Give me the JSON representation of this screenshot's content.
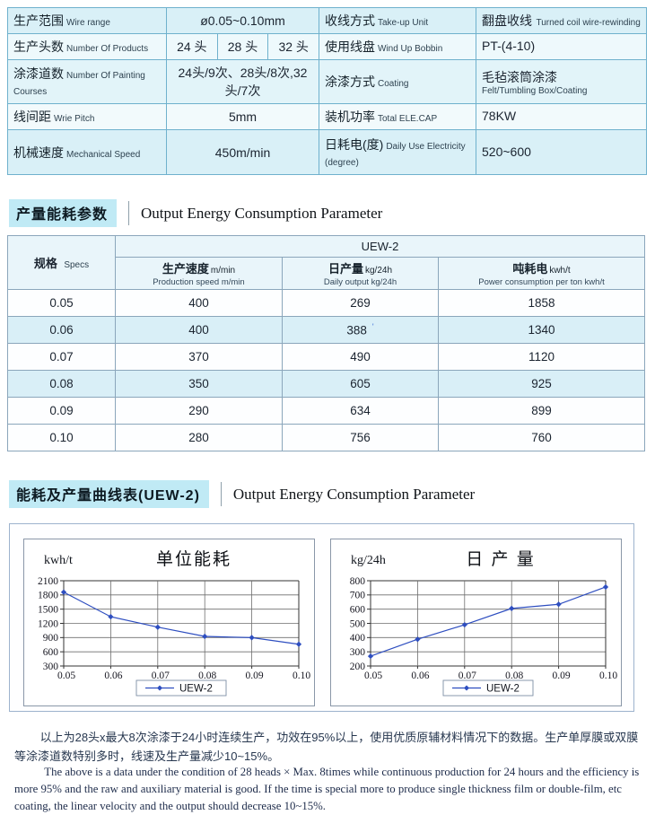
{
  "spec_table": {
    "rows": [
      {
        "l_zh": "生产范围",
        "l_en": "Wire range",
        "mid": {
          "type": "single",
          "text": "ø0.05~0.10mm"
        },
        "r_zh": "收线方式",
        "r_en": "Take-up Unit",
        "rv_main": "翻盘收线",
        "rv_sub": "Turned coil wire-rewinding",
        "rv_inline": true
      },
      {
        "l_zh": "生产头数",
        "l_en": "Number Of Products",
        "mid": {
          "type": "split",
          "cells": [
            "24 头",
            "28 头",
            "32 头"
          ]
        },
        "r_zh": "使用线盘",
        "r_en": "Wind Up Bobbin",
        "rv_main": "PT-(4-10)",
        "rv_sub": "",
        "rv_inline": false
      },
      {
        "l_zh": "涂漆道数",
        "l_en": "Number Of Painting Courses",
        "mid": {
          "type": "single",
          "text": "24头/9次、28头/8次,32头/7次"
        },
        "r_zh": "涂漆方式",
        "r_en": "Coating",
        "rv_main": "毛毡滚筒涂漆",
        "rv_sub": "Felt/Tumbling Box/Coating",
        "rv_inline": false
      },
      {
        "l_zh": "线间距",
        "l_en": "Wrie Pitch",
        "mid": {
          "type": "single",
          "text": "5mm"
        },
        "r_zh": "装机功率",
        "r_en": "Total ELE.CAP",
        "rv_main": "78KW",
        "rv_sub": "",
        "rv_inline": false
      },
      {
        "l_zh": "机械速度",
        "l_en": "Mechanical Speed",
        "mid": {
          "type": "single",
          "text": "450m/min"
        },
        "r_zh": "日耗电(度)",
        "r_en": "Daily Use Electricity (degree)",
        "rv_main": "520~600",
        "rv_sub": "",
        "rv_inline": false
      }
    ]
  },
  "section1": {
    "highlight_zh": "产量能耗参数",
    "title_en": "Output Energy Consumption Parameter"
  },
  "output_table": {
    "spec_header_zh": "规格",
    "spec_header_en": "Specs",
    "group_header": "UEW-2",
    "columns": [
      {
        "zh": "生产速度",
        "unit": "m/min",
        "en": "Production speed m/min"
      },
      {
        "zh": "日产量",
        "unit": "kg/24h",
        "en": "Daily output kg/24h"
      },
      {
        "zh": "吨耗电",
        "unit": "kwh/t",
        "en": "Power consumption per ton kwh/t"
      }
    ],
    "rows": [
      {
        "spec": "0.05",
        "speed": "400",
        "output": "269",
        "power": "1858",
        "highlight": false,
        "mark": ""
      },
      {
        "spec": "0.06",
        "speed": "400",
        "output": "388",
        "power": "1340",
        "highlight": true,
        "mark": "'"
      },
      {
        "spec": "0.07",
        "speed": "370",
        "output": "490",
        "power": "1120",
        "highlight": false,
        "mark": ""
      },
      {
        "spec": "0.08",
        "speed": "350",
        "output": "605",
        "power": "925",
        "highlight": true,
        "mark": ""
      },
      {
        "spec": "0.09",
        "speed": "290",
        "output": "634",
        "power": "899",
        "highlight": false,
        "mark": ""
      },
      {
        "spec": "0.10",
        "speed": "280",
        "output": "756",
        "power": "760",
        "highlight": false,
        "mark": ""
      }
    ]
  },
  "section2": {
    "highlight_zh": "能耗及产量曲线表(UEW-2)",
    "title_en": "Output Energy Consumption Parameter"
  },
  "chart_data": [
    {
      "type": "line",
      "title": "单位能耗",
      "ylabel": "kwh/t",
      "xlabel": "",
      "categories": [
        "0.05",
        "0.06",
        "0.07",
        "0.08",
        "0.09",
        "0.10"
      ],
      "series": [
        {
          "name": "UEW-2",
          "values": [
            1858,
            1340,
            1120,
            925,
            899,
            760
          ]
        }
      ],
      "ylim": [
        300,
        2100
      ],
      "yticks": [
        300,
        600,
        900,
        1200,
        1500,
        1800,
        2100
      ],
      "grid": true,
      "legend_position": "bottom",
      "line_color": "#2e4ec0"
    },
    {
      "type": "line",
      "title": "日 产 量",
      "ylabel": "kg/24h",
      "xlabel": "",
      "categories": [
        "0.05",
        "0.06",
        "0.07",
        "0.08",
        "0.09",
        "0.10"
      ],
      "series": [
        {
          "name": "UEW-2",
          "values": [
            269,
            388,
            490,
            605,
            634,
            756
          ]
        }
      ],
      "ylim": [
        200,
        800
      ],
      "yticks": [
        200,
        300,
        400,
        500,
        600,
        700,
        800
      ],
      "grid": true,
      "legend_position": "bottom",
      "line_color": "#2e4ec0"
    }
  ],
  "footer": {
    "cn": "以上为28头x最大8次涂漆于24小时连续生产，功效在95%以上，使用优质原辅材料情况下的数据。生产单厚膜或双膜等涂漆道数特别多时，线速及生产量减少10~15%。",
    "en": "The above is a data under the condition of 28 heads × Max. 8times while continuous production for 24 hours and the efficiency is more 95% and the raw and auxiliary material is good. If the time is special more to produce single thickness film or double-film, etc coating, the linear velocity and the output should decrease 10~15%."
  }
}
